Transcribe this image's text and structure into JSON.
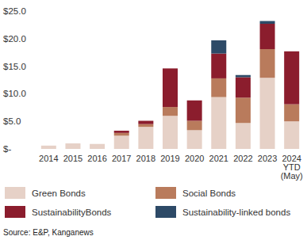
{
  "chart_data": {
    "type": "bar",
    "stacked": true,
    "grid": false,
    "legend": "bottom",
    "source": "Source: E&P, Kanganews",
    "categories": [
      "2014",
      "2015",
      "2016",
      "2017",
      "2018",
      "2019",
      "2020",
      "2021",
      "2022",
      "2023",
      "2024 YTD (May)"
    ],
    "series": [
      {
        "name": "Green Bonds",
        "color": "#e6d1c7",
        "values": [
          0.6,
          1.0,
          0.9,
          2.4,
          4.0,
          6.0,
          3.4,
          9.4,
          4.7,
          12.9,
          5.0
        ]
      },
      {
        "name": "Social Bonds",
        "color": "#b97b5c",
        "values": [
          0,
          0,
          0,
          0.5,
          0.5,
          1.6,
          1.7,
          3.4,
          4.6,
          5.2,
          3.1
        ]
      },
      {
        "name": "SustainabilityBonds",
        "color": "#8b1d2d",
        "values": [
          0,
          0,
          0,
          0.4,
          0.6,
          7.0,
          3.7,
          4.5,
          3.7,
          4.6,
          9.6
        ]
      },
      {
        "name": "Sustainability-linked bonds",
        "color": "#2d4a67",
        "values": [
          0,
          0,
          0,
          0,
          0,
          0,
          0,
          2.4,
          0.4,
          0.5,
          0
        ]
      }
    ],
    "ylim": [
      0,
      25
    ],
    "yticks": [
      {
        "value": 0,
        "label": "$-"
      },
      {
        "value": 5,
        "label": "$5.0"
      },
      {
        "value": 10,
        "label": "$10.0"
      },
      {
        "value": 15,
        "label": "$15.0"
      },
      {
        "value": 20,
        "label": "$20.0"
      },
      {
        "value": 25,
        "label": "$25.0"
      }
    ]
  }
}
